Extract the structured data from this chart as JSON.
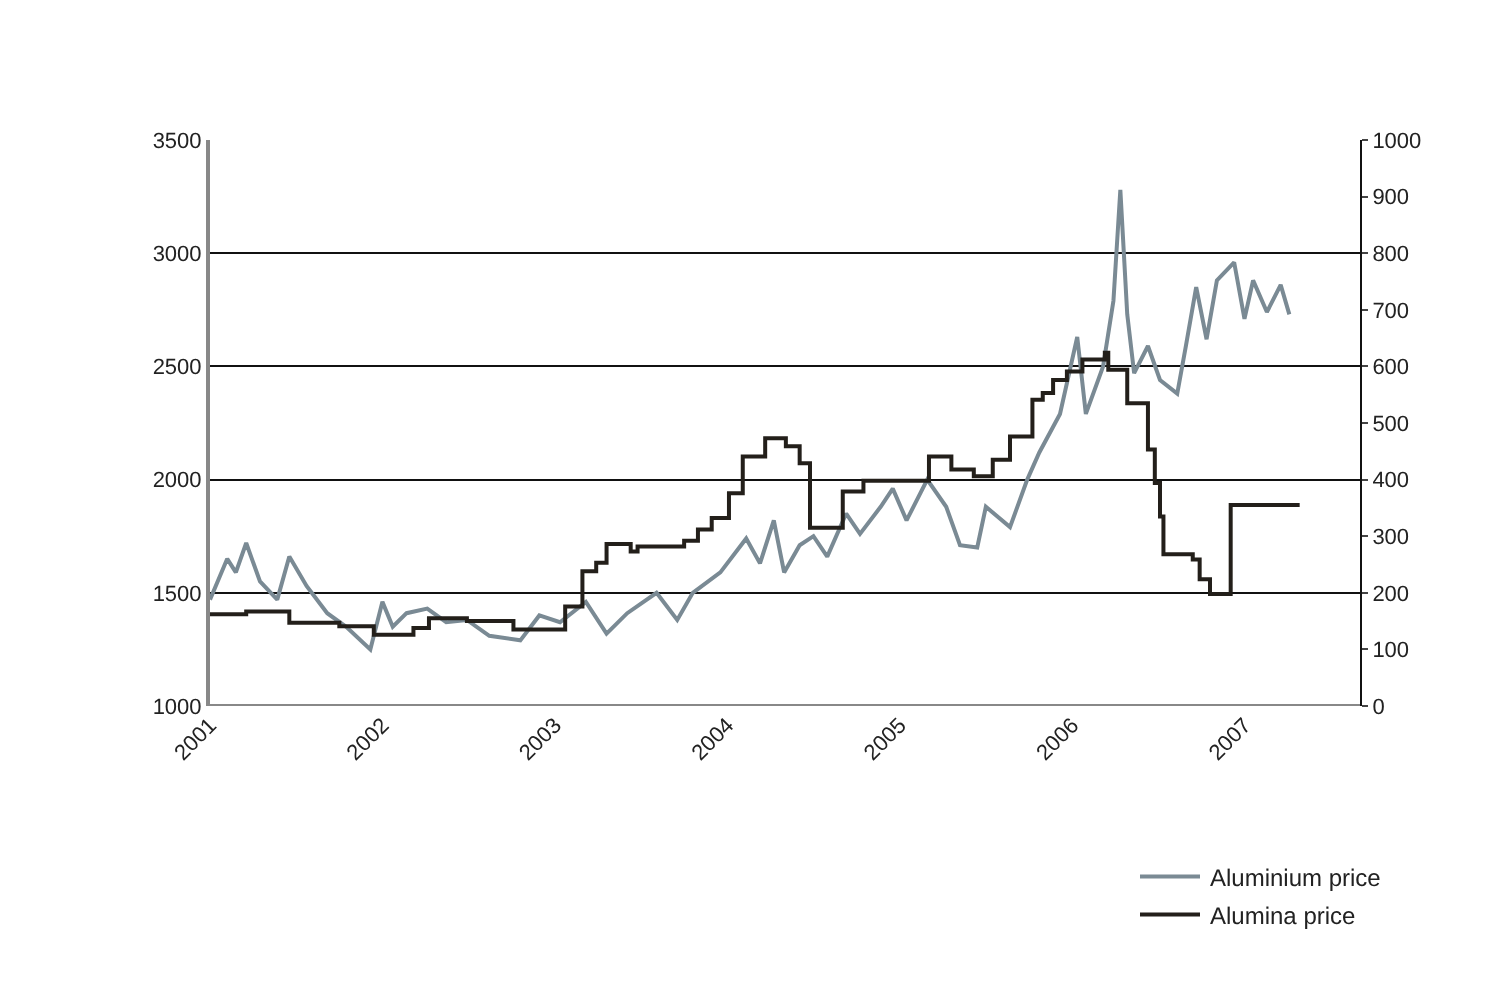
{
  "chart_data": {
    "type": "line",
    "xlim": [
      2001,
      2007.67
    ],
    "xticks": [
      2001,
      2002,
      2003,
      2004,
      2005,
      2006,
      2007
    ],
    "ylim": [
      1000,
      3500
    ],
    "yticks": [
      1000,
      1500,
      2000,
      2500,
      3000,
      3500
    ],
    "y2lim": [
      0,
      1000
    ],
    "y2ticks": [
      0,
      100,
      200,
      300,
      400,
      500,
      600,
      700,
      800,
      900,
      1000
    ],
    "grid": "y",
    "legend": "bottom right",
    "series": [
      {
        "name": "Aluminium price",
        "color": "#7a8a94",
        "x": [
          2001.0,
          2001.1,
          2001.15,
          2001.21,
          2001.29,
          2001.39,
          2001.46,
          2001.56,
          2001.68,
          2001.79,
          2001.93,
          2002.0,
          2002.06,
          2002.14,
          2002.26,
          2002.37,
          2002.49,
          2002.62,
          2002.8,
          2002.91,
          2003.03,
          2003.18,
          2003.3,
          2003.42,
          2003.59,
          2003.71,
          2003.8,
          2003.96,
          2004.11,
          2004.19,
          2004.27,
          2004.33,
          2004.42,
          2004.5,
          2004.58,
          2004.69,
          2004.77,
          2004.89,
          2004.96,
          2005.04,
          2005.16,
          2005.27,
          2005.35,
          2005.45,
          2005.5,
          2005.64,
          2005.74,
          2005.81,
          2005.93,
          2006.03,
          2006.08,
          2006.18,
          2006.24,
          2006.28,
          2006.32,
          2006.36,
          2006.44,
          2006.51,
          2006.61,
          2006.66,
          2006.72,
          2006.78,
          2006.84,
          2006.94,
          2007.0,
          2007.05,
          2007.13,
          2007.21,
          2007.26
        ],
        "values": [
          1470,
          1650,
          1590,
          1720,
          1550,
          1470,
          1660,
          1530,
          1410,
          1350,
          1250,
          1460,
          1350,
          1410,
          1430,
          1370,
          1380,
          1310,
          1290,
          1400,
          1370,
          1460,
          1320,
          1410,
          1500,
          1380,
          1500,
          1590,
          1740,
          1630,
          1820,
          1590,
          1710,
          1750,
          1660,
          1850,
          1760,
          1880,
          1960,
          1820,
          2000,
          1880,
          1710,
          1700,
          1880,
          1790,
          2000,
          2120,
          2290,
          2630,
          2290,
          2500,
          2790,
          3280,
          2730,
          2470,
          2590,
          2440,
          2380,
          2590,
          2850,
          2620,
          2880,
          2960,
          2710,
          2880,
          2740,
          2860,
          2730
        ]
      },
      {
        "name": "Alumina price",
        "color": "#231f1a",
        "type": "step",
        "axis": "y2",
        "x": [
          2001.0,
          2001.21,
          2001.46,
          2001.75,
          2001.95,
          2002.18,
          2002.27,
          2002.49,
          2002.76,
          2003.06,
          2003.16,
          2003.24,
          2003.3,
          2003.44,
          2003.48,
          2003.75,
          2003.83,
          2003.91,
          2004.01,
          2004.09,
          2004.22,
          2004.34,
          2004.42,
          2004.48,
          2004.67,
          2004.79,
          2005.17,
          2005.3,
          2005.43,
          2005.54,
          2005.64,
          2005.77,
          2005.83,
          2005.89,
          2005.97,
          2006.06,
          2006.19,
          2006.21,
          2006.32,
          2006.44,
          2006.48,
          2006.51,
          2006.53,
          2006.7,
          2006.74,
          2006.8,
          2006.92,
          2007.32
        ],
        "values": [
          162,
          167,
          147,
          141,
          126,
          138,
          155,
          150,
          135,
          176,
          238,
          253,
          286,
          273,
          282,
          292,
          312,
          332,
          376,
          441,
          473,
          459,
          429,
          315,
          379,
          398,
          441,
          418,
          406,
          435,
          476,
          541,
          553,
          576,
          591,
          612,
          624,
          594,
          535,
          453,
          394,
          335,
          268,
          259,
          224,
          198,
          355,
          355
        ]
      }
    ]
  }
}
